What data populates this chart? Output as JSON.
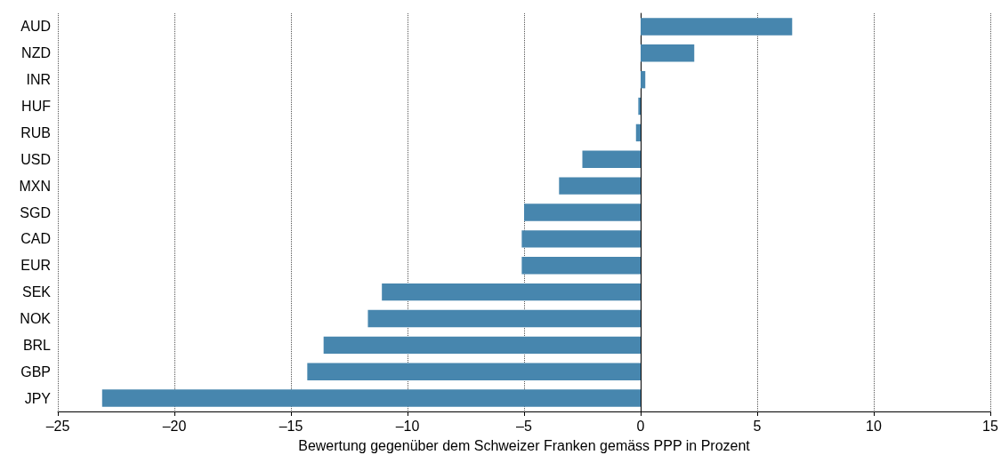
{
  "chart_data": {
    "type": "bar",
    "orientation": "horizontal",
    "xlabel": "Bewertung gegenüber dem Schweizer Franken gemäss PPP in Prozent",
    "categories": [
      "AUD",
      "NZD",
      "INR",
      "HUF",
      "RUB",
      "USD",
      "MXN",
      "SGD",
      "CAD",
      "EUR",
      "SEK",
      "NOK",
      "BRL",
      "GBP",
      "JPY"
    ],
    "values": [
      6.5,
      2.3,
      0.2,
      -0.1,
      -0.2,
      -2.5,
      -3.5,
      -5.0,
      -5.1,
      -5.1,
      -11.1,
      -11.7,
      -13.6,
      -14.3,
      -23.1
    ],
    "color": "#4786ae",
    "xlim": [
      -25,
      15
    ],
    "xticks": [
      {
        "value": -25,
        "label": "–25"
      },
      {
        "value": -20,
        "label": "–20"
      },
      {
        "value": -15,
        "label": "–15"
      },
      {
        "value": -10,
        "label": "–10"
      },
      {
        "value": -5,
        "label": "–5"
      },
      0,
      5,
      10,
      15
    ],
    "grid": "x"
  }
}
